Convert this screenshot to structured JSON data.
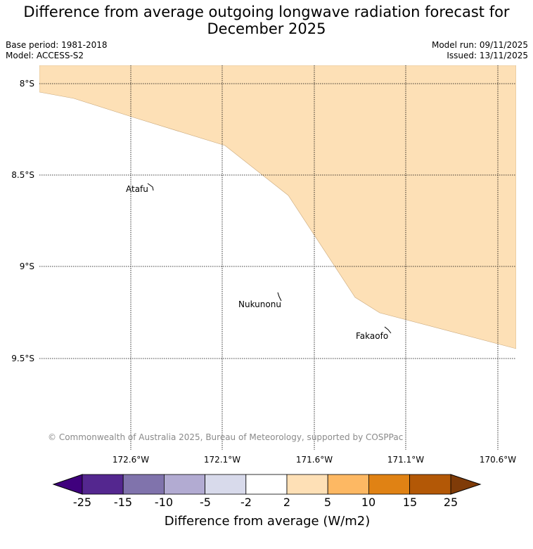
{
  "title": "Difference from average outgoing longwave radiation forecast for December 2025",
  "meta": {
    "base_period": "Base period: 1981-2018",
    "model": "Model: ACCESS-S2",
    "model_run": "Model run: 09/11/2025",
    "issued": "Issued: 13/11/2025"
  },
  "map": {
    "lat_labels": [
      "8°S",
      "8.5°S",
      "9°S",
      "9.5°S"
    ],
    "lon_labels": [
      "172.6°W",
      "172.1°W",
      "171.6°W",
      "171.1°W",
      "170.6°W"
    ],
    "places": [
      "Atafu",
      "Nukunonu",
      "Fakaofo"
    ],
    "copyright": "© Commonwealth of Australia 2025, Bureau of Meteorology, supported by COSPPac",
    "anomaly_region_color": "#fde0b6"
  },
  "colorbar": {
    "ticks": [
      "-25",
      "-15",
      "-10",
      "-5",
      "-2",
      "2",
      "5",
      "10",
      "15",
      "25"
    ],
    "colors": [
      "#3f007d",
      "#54278f",
      "#8073ac",
      "#b2abd2",
      "#d8daeb",
      "#ffffff",
      "#fee0b6",
      "#fdb863",
      "#e08214",
      "#b35806",
      "#7f3b08"
    ],
    "label": "Difference from average (W/m2)"
  }
}
